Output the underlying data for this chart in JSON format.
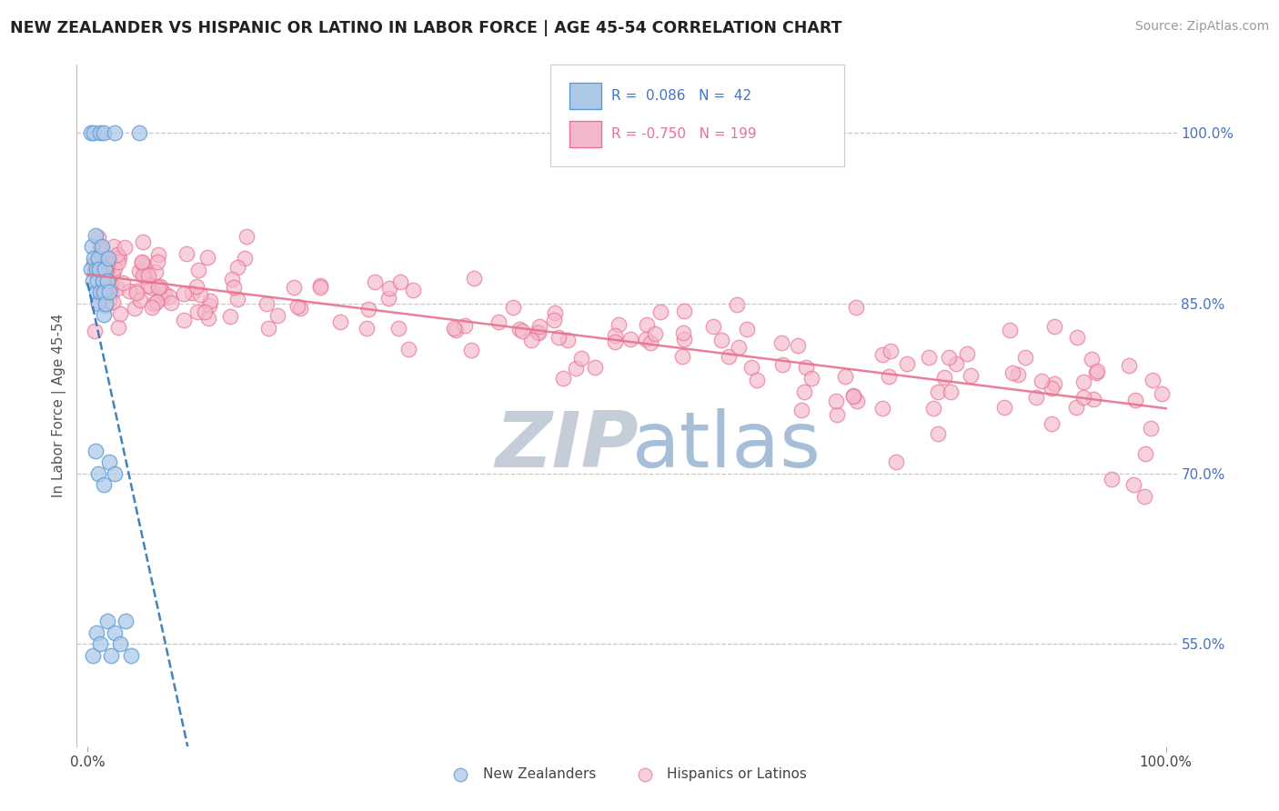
{
  "title": "NEW ZEALANDER VS HISPANIC OR LATINO IN LABOR FORCE | AGE 45-54 CORRELATION CHART",
  "source": "Source: ZipAtlas.com",
  "ylabel": "In Labor Force | Age 45-54",
  "xlim": [
    -0.01,
    1.01
  ],
  "ylim": [
    0.46,
    1.06
  ],
  "yticks": [
    0.55,
    0.7,
    0.85,
    1.0
  ],
  "ytick_labels": [
    "55.0%",
    "70.0%",
    "85.0%",
    "100.0%"
  ],
  "background_color": "#ffffff",
  "grid_color": "#c8c8c8",
  "nz_face_color": "#aec9e8",
  "nz_edge_color": "#5b9bd5",
  "hisp_face_color": "#f4b8cc",
  "hisp_edge_color": "#e8718d",
  "trend_nz_color": "#2e75b6",
  "trend_hisp_color": "#e8718d",
  "legend_box_color": "#ffffff",
  "legend_border_color": "#cccccc",
  "nz_label": "New Zealanders",
  "hisp_label": "Hispanics or Latinos",
  "watermark_zip_color": "#c8ced8",
  "watermark_atlas_color": "#90aece",
  "legend_R1": "R =  0.086",
  "legend_N1": "N =  42",
  "legend_R2": "R = -0.750",
  "legend_N2": "N = 199"
}
